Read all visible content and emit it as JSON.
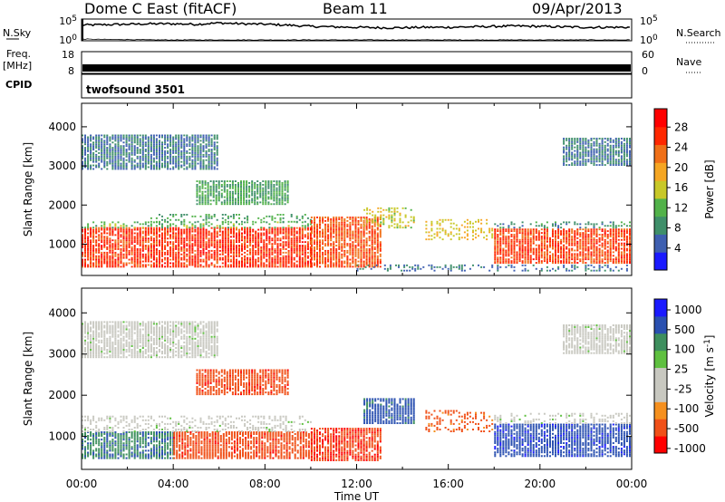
{
  "header": {
    "station": "Dome C East (fitACF)",
    "beam": "Beam 11",
    "date": "09/Apr/2013"
  },
  "side_labels": {
    "nsky": "N.Sky",
    "freq": "Freq.",
    "freq_unit": "[MHz]",
    "cpid": "CPID",
    "nsearch": "N.Search",
    "nave": "Nave"
  },
  "cpid_text": "twofsound 3501",
  "colors": {
    "power_scale": [
      "#1a1aff",
      "#3e5fb0",
      "#3f8f6a",
      "#52b24a",
      "#c8c828",
      "#f5a623",
      "#f07018",
      "#ff2800",
      "#ff0000"
    ],
    "velocity_scale": [
      "#ff0000",
      "#f05018",
      "#f5901f",
      "#c8c8c0",
      "#c8c8c0",
      "#5fc040",
      "#3e8f5e",
      "#2a50b0",
      "#1a1aff"
    ]
  },
  "chart_data": [
    {
      "type": "line",
      "name": "noise-panel",
      "y_ticks_left": [
        "10^5",
        "10^0"
      ],
      "y_ticks_right": [
        "10^5",
        "10^0"
      ],
      "ylim_log": [
        0,
        5
      ],
      "x": [
        0,
        1,
        2,
        3,
        4,
        5,
        6,
        7,
        8,
        9,
        10,
        11,
        12,
        13,
        14,
        15,
        16,
        17,
        18,
        19,
        20,
        21,
        22,
        23,
        24
      ],
      "series": [
        {
          "values": [
            3.6,
            3.7,
            3.8,
            3.9,
            3.9,
            3.8,
            4.1,
            3.9,
            3.8,
            3.6,
            3.3,
            3.2,
            3.1,
            3.0,
            3.0,
            3.1,
            3.1,
            3.2,
            3.3,
            3.4,
            3.3,
            3.2,
            3.1,
            3.1,
            3.1
          ]
        },
        {
          "values": [
            0.4,
            0.3,
            0.3,
            0.2,
            0.2,
            0.2,
            0.2,
            0.2,
            0.2,
            0.2,
            0.2,
            0.2,
            0.2,
            0.2,
            0.2,
            0.2,
            0.2,
            0.2,
            0.2,
            0.2,
            0.2,
            0.2,
            0.2,
            0.2,
            0.2
          ]
        }
      ]
    },
    {
      "type": "line",
      "name": "frequency-panel",
      "y_ticks_left": [
        "18",
        "8"
      ],
      "y_ticks_right": [
        "60",
        "0"
      ],
      "ylim": [
        8,
        18
      ],
      "ylim_right": [
        0,
        60
      ],
      "x": [
        0,
        24
      ],
      "series": [
        {
          "values": [
            10.5,
            10.5
          ]
        }
      ]
    },
    {
      "type": "heatmap",
      "name": "power",
      "ylabel": "Slant Range [km]",
      "y_ticks": [
        1000,
        2000,
        3000,
        4000
      ],
      "ylim": [
        200,
        4600
      ],
      "xlim": [
        0,
        24
      ],
      "colorbar_label": "Power [dB]",
      "colorbar_ticks": [
        "28",
        "24",
        "20",
        "16",
        "12",
        "8",
        "4"
      ],
      "colorbar_range": [
        0,
        32
      ],
      "regions": [
        {
          "t0": 0,
          "t1": 10,
          "r0": 400,
          "r1": 1400,
          "value": 28
        },
        {
          "t0": 0,
          "t1": 10,
          "r0": 1400,
          "r1": 1550,
          "value": 12
        },
        {
          "t0": 3,
          "t1": 10,
          "r0": 1550,
          "r1": 1750,
          "value": 10
        },
        {
          "t0": 10,
          "t1": 13,
          "r0": 400,
          "r1": 1700,
          "value": 26
        },
        {
          "t0": 12.3,
          "t1": 14.5,
          "r0": 1400,
          "r1": 1900,
          "value": 16
        },
        {
          "t0": 15,
          "t1": 18,
          "r0": 1100,
          "r1": 1600,
          "value": 18
        },
        {
          "t0": 18,
          "t1": 24,
          "r0": 500,
          "r1": 1400,
          "value": 27
        },
        {
          "t0": 18,
          "t1": 24,
          "r0": 1400,
          "r1": 1550,
          "value": 8
        },
        {
          "t0": 5,
          "t1": 9,
          "r0": 2000,
          "r1": 2600,
          "value": 10
        },
        {
          "t0": 0,
          "t1": 6,
          "r0": 2900,
          "r1": 3800,
          "value": 6
        },
        {
          "t0": 12,
          "t1": 24,
          "r0": 300,
          "r1": 450,
          "value": 6
        },
        {
          "t0": 21,
          "t1": 24,
          "r0": 3000,
          "r1": 3700,
          "value": 6
        }
      ]
    },
    {
      "type": "heatmap",
      "name": "velocity",
      "ylabel": "Slant Range [km]",
      "xlabel": "Time UT",
      "x_ticks": [
        "00:00",
        "04:00",
        "08:00",
        "12:00",
        "16:00",
        "20:00",
        "00:00"
      ],
      "y_ticks": [
        1000,
        2000,
        3000,
        4000
      ],
      "ylim": [
        200,
        4600
      ],
      "xlim": [
        0,
        24
      ],
      "colorbar_label": "Velocity [m s^-1]",
      "colorbar_ticks": [
        "1000",
        "500",
        "100",
        "25",
        "-25",
        "-100",
        "-500",
        "-1000"
      ],
      "regions": [
        {
          "t0": 0,
          "t1": 4,
          "r0": 450,
          "r1": 1100,
          "value": 50
        },
        {
          "t0": 4,
          "t1": 10,
          "r0": 450,
          "r1": 1100,
          "value": -200
        },
        {
          "t0": 0,
          "t1": 10,
          "r0": 1100,
          "r1": 1500,
          "value": 0
        },
        {
          "t0": 10,
          "t1": 13,
          "r0": 400,
          "r1": 1200,
          "value": -300
        },
        {
          "t0": 12.3,
          "t1": 14.5,
          "r0": 1300,
          "r1": 1900,
          "value": 150
        },
        {
          "t0": 15,
          "t1": 18,
          "r0": 1100,
          "r1": 1600,
          "value": -150
        },
        {
          "t0": 18,
          "t1": 24,
          "r0": 500,
          "r1": 1300,
          "value": 200
        },
        {
          "t0": 18,
          "t1": 24,
          "r0": 1300,
          "r1": 1550,
          "value": 0
        },
        {
          "t0": 5,
          "t1": 9,
          "r0": 2000,
          "r1": 2600,
          "value": -200
        },
        {
          "t0": 0,
          "t1": 6,
          "r0": 2900,
          "r1": 3800,
          "value": 0
        },
        {
          "t0": 21,
          "t1": 24,
          "r0": 3000,
          "r1": 3700,
          "value": 0
        }
      ]
    }
  ]
}
